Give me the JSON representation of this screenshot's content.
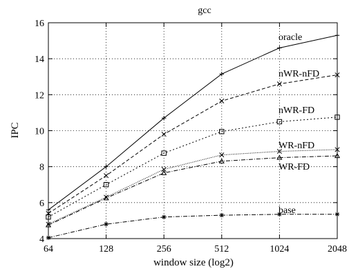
{
  "chart_data": {
    "type": "line",
    "title": "gcc",
    "xlabel": "window size (log2)",
    "ylabel": "IPC",
    "x": [
      "64",
      "128",
      "256",
      "512",
      "1024",
      "2048"
    ],
    "ylim": [
      4,
      16
    ],
    "yticks": [
      4,
      6,
      8,
      10,
      12,
      14,
      16
    ],
    "grid": true,
    "series": [
      {
        "name": "oracle",
        "values": [
          5.6,
          8.0,
          10.7,
          13.15,
          14.6,
          15.3
        ],
        "dash": "none",
        "marker": "plus"
      },
      {
        "name": "nWR-nFD",
        "values": [
          5.4,
          7.5,
          9.8,
          11.65,
          12.6,
          13.1
        ],
        "dash": "5 3",
        "marker": "x"
      },
      {
        "name": "nWR-FD",
        "values": [
          5.2,
          7.0,
          8.75,
          9.95,
          10.5,
          10.75
        ],
        "dash": "2 3",
        "marker": "square"
      },
      {
        "name": "WR-nFD",
        "values": [
          4.8,
          6.3,
          7.85,
          8.65,
          8.85,
          8.95
        ],
        "dash": "1 1.5",
        "marker": "x"
      },
      {
        "name": "WR-FD",
        "values": [
          4.75,
          6.25,
          7.65,
          8.3,
          8.5,
          8.6
        ],
        "dash": "6 2 1 2",
        "marker": "triangle"
      },
      {
        "name": "base",
        "values": [
          4.05,
          4.8,
          5.2,
          5.3,
          5.35,
          5.35
        ],
        "dash": "6 2 1 2",
        "marker": "star"
      }
    ]
  }
}
